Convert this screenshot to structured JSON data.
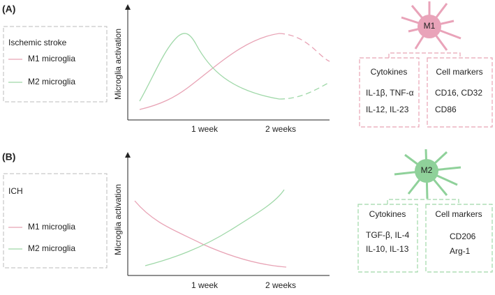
{
  "panels": [
    {
      "label": "(A)",
      "legend": {
        "title": "Ischemic stroke",
        "items": [
          "M1 microglia",
          "M2 microglia"
        ]
      },
      "y_axis_label": "Microglia activation",
      "x_ticks": [
        "1 week",
        "2 weeks"
      ],
      "cell": "M1",
      "boxes": [
        {
          "title": "Cytokines",
          "lines": [
            "IL-1β, TNF-α",
            "IL-12, IL-23"
          ]
        },
        {
          "title": "Cell markers",
          "lines": [
            "CD16, CD32",
            "CD86"
          ]
        }
      ]
    },
    {
      "label": "(B)",
      "legend": {
        "title": "ICH",
        "items": [
          "M1 microglia",
          "M2 microglia"
        ]
      },
      "y_axis_label": "Microglia activation",
      "x_ticks": [
        "1 week",
        "2 weeks"
      ],
      "cell": "M2",
      "boxes": [
        {
          "title": "Cytokines",
          "lines": [
            "TGF-β, IL-4",
            "IL-10, IL-13"
          ]
        },
        {
          "title": "Cell markers",
          "lines": [
            "CD206",
            "Arg-1"
          ]
        }
      ]
    }
  ]
}
